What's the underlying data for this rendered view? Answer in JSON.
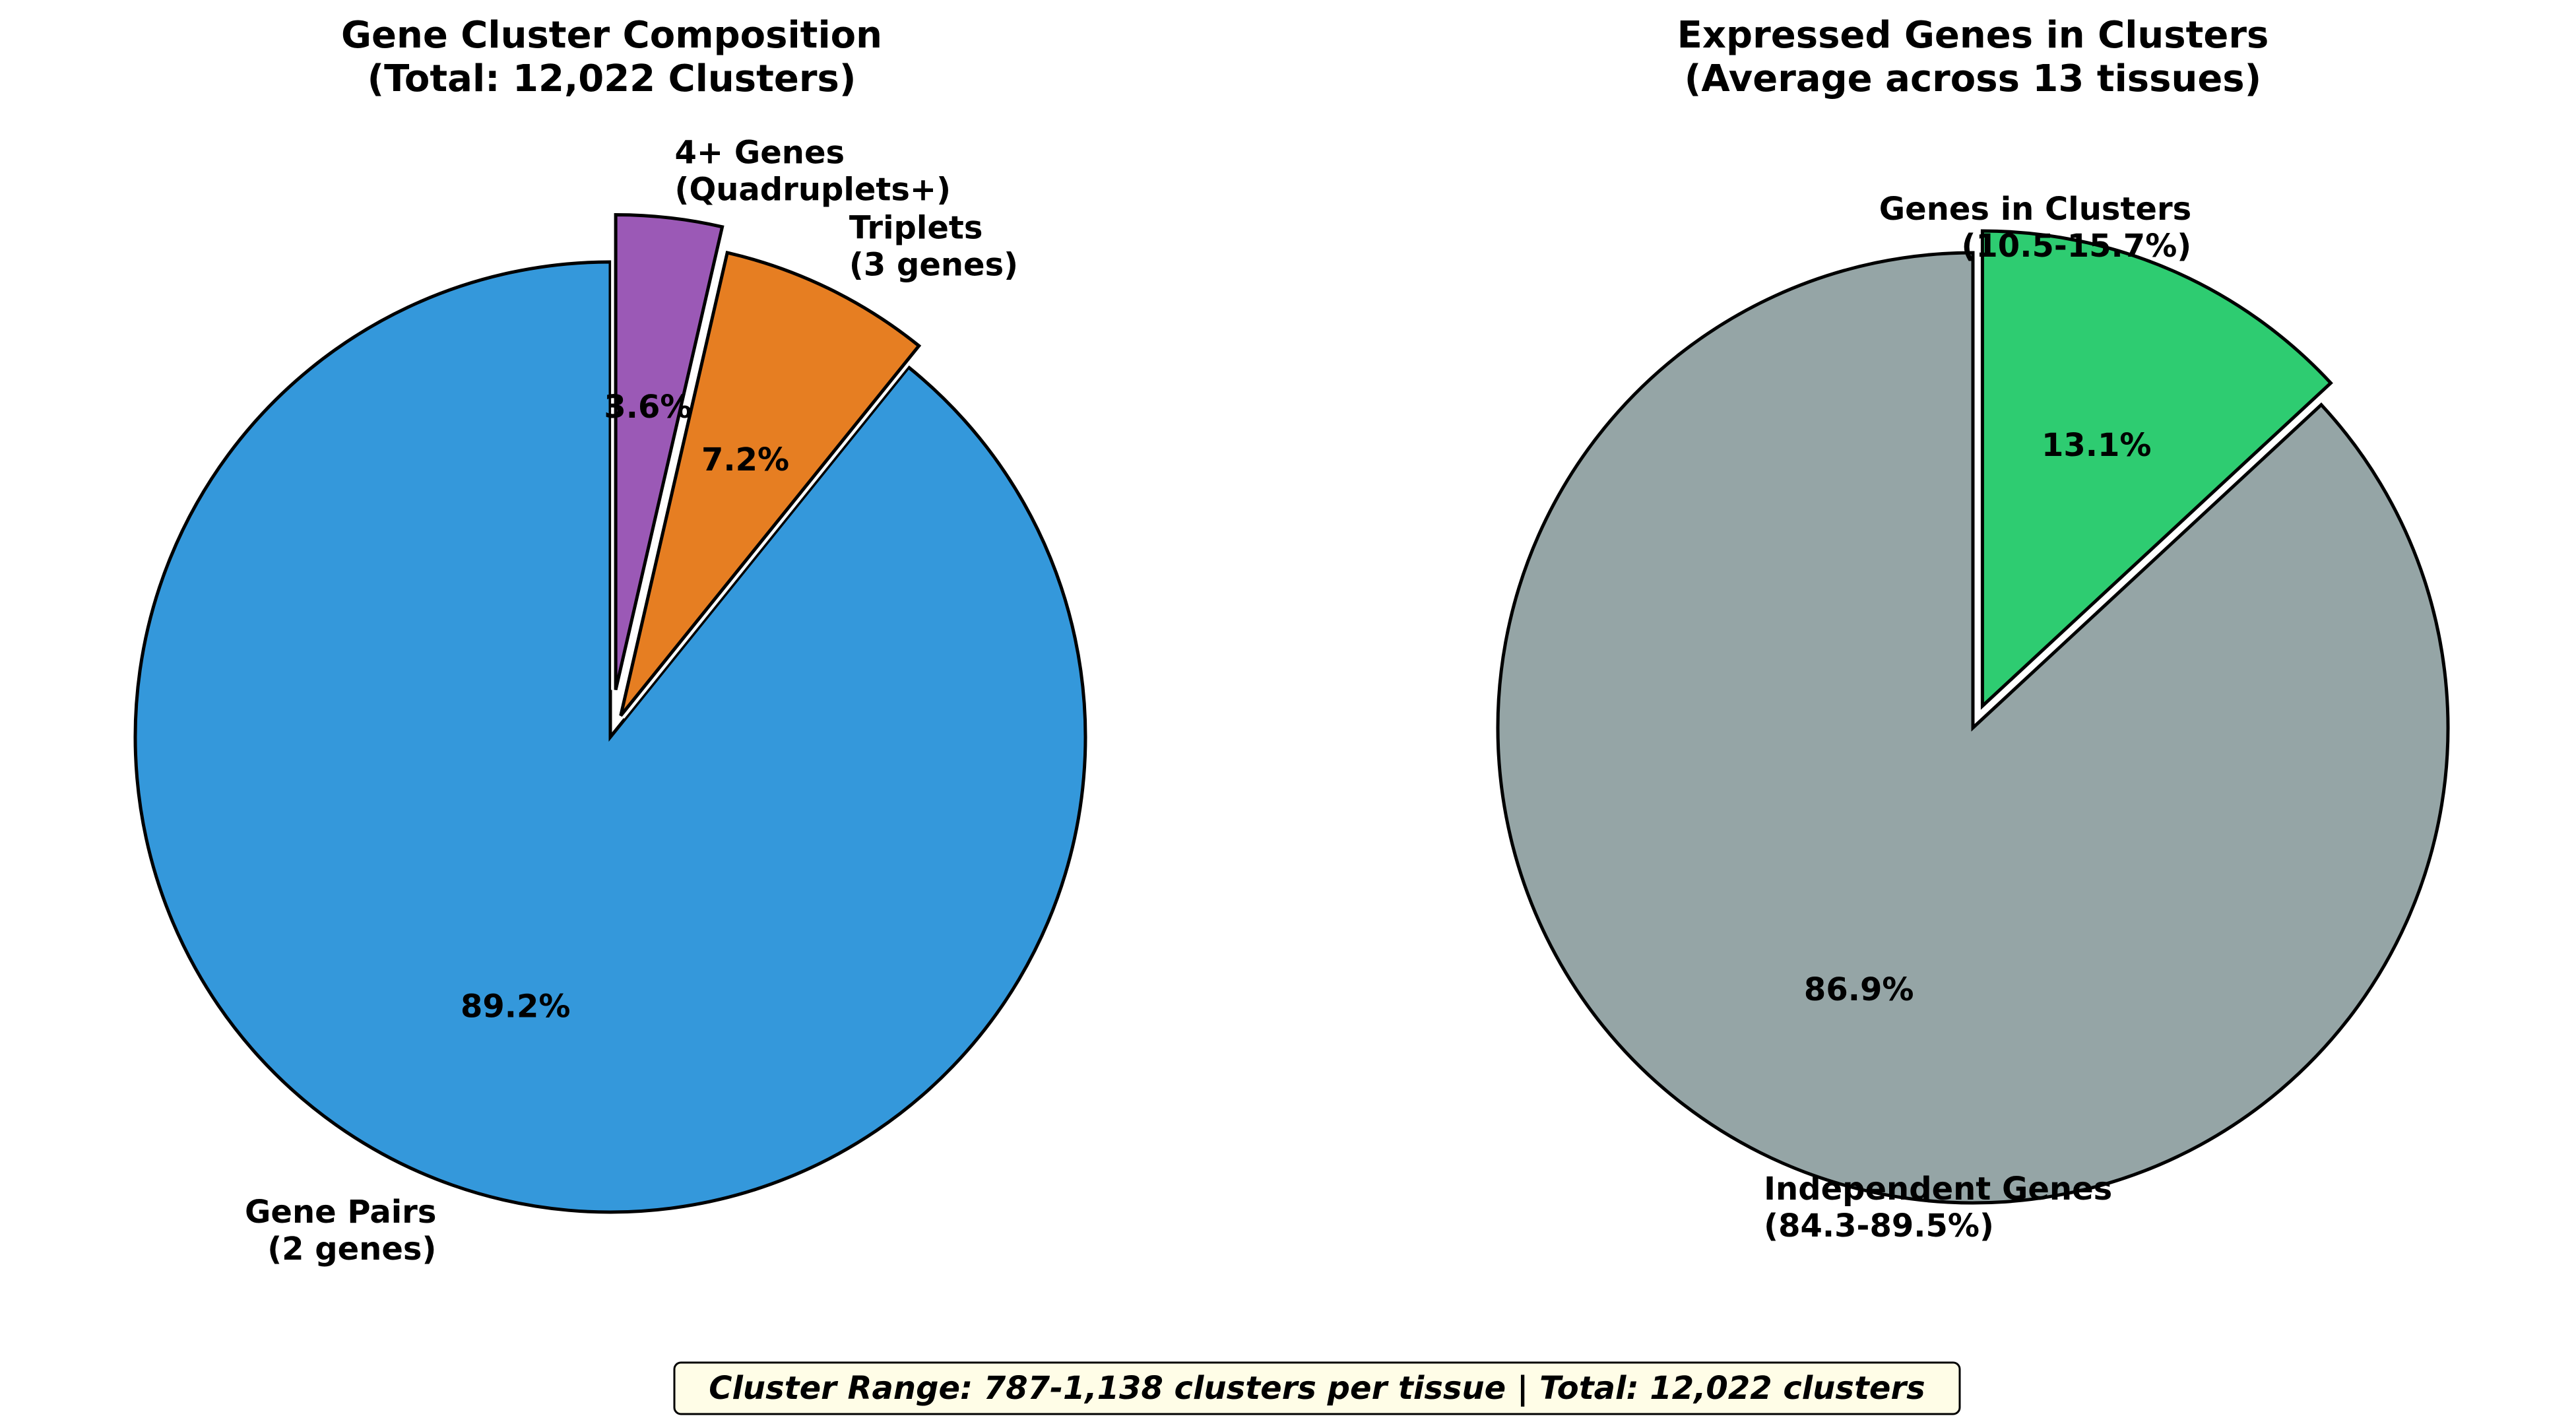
{
  "chart_data": [
    {
      "type": "pie",
      "title": [
        "Gene Cluster Composition",
        "(Total: 12,022 Clusters)"
      ],
      "start_angle_deg": 90,
      "direction": "counterclockwise",
      "slices": [
        {
          "label": [
            "Gene Pairs",
            "(2 genes)"
          ],
          "value": 89.2,
          "pct_label": "89.2%",
          "color": "#3498db",
          "explode": 0.0
        },
        {
          "label": [
            "Triplets",
            "(3 genes)"
          ],
          "value": 7.2,
          "pct_label": "7.2%",
          "color": "#e67e22",
          "explode": 0.05
        },
        {
          "label": [
            "4+ Genes",
            "(Quadruplets+)"
          ],
          "value": 3.6,
          "pct_label": "3.6%",
          "color": "#9b59b6",
          "explode": 0.1
        }
      ]
    },
    {
      "type": "pie",
      "title": [
        "Expressed Genes in Clusters",
        "(Average across 13 tissues)"
      ],
      "start_angle_deg": 90,
      "direction": "counterclockwise",
      "slices": [
        {
          "label": [
            "Independent Genes",
            "(84.3-89.5%)"
          ],
          "value": 86.9,
          "pct_label": "86.9%",
          "color": "#95a5a6",
          "explode": 0.0
        },
        {
          "label": [
            "Genes in Clusters",
            "(10.5-15.7%)"
          ],
          "value": 13.1,
          "pct_label": "13.1%",
          "color": "#2ecc71",
          "explode": 0.05
        }
      ]
    }
  ],
  "footer": {
    "text": "Cluster Range: 787-1,138 clusters per tissue | Total: 12,022 clusters",
    "background": "#fffde7"
  }
}
